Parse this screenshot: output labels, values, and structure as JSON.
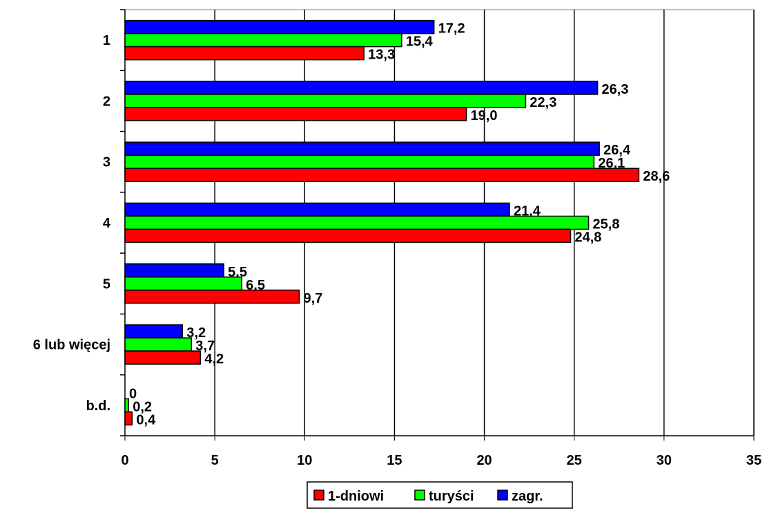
{
  "chart_data": {
    "type": "bar",
    "orientation": "horizontal",
    "categories": [
      "1",
      "2",
      "3",
      "4",
      "5",
      "6 lub więcej",
      "b.d."
    ],
    "series": [
      {
        "name": "1-dniowi",
        "color": "#ff0000",
        "values": [
          13.3,
          19.0,
          28.6,
          24.8,
          9.7,
          4.2,
          0.4
        ],
        "labels": [
          "13,3",
          "19,0",
          "28,6",
          "24,8",
          "9,7",
          "4,2",
          "0,4"
        ]
      },
      {
        "name": "turyści",
        "color": "#00ff00",
        "values": [
          15.4,
          22.3,
          26.1,
          25.8,
          6.5,
          3.7,
          0.2
        ],
        "labels": [
          "15,4",
          "22,3",
          "26,1",
          "25,8",
          "6,5",
          "3,7",
          "0,2"
        ]
      },
      {
        "name": "zagr.",
        "color": "#0000ff",
        "values": [
          17.2,
          26.3,
          26.4,
          21.4,
          5.5,
          3.2,
          0
        ],
        "labels": [
          "17,2",
          "26,3",
          "26,4",
          "21,4",
          "5,5",
          "3,2",
          "0"
        ]
      }
    ],
    "xlim": [
      0,
      35
    ],
    "xticks": [
      0,
      5,
      10,
      15,
      20,
      25,
      30,
      35
    ],
    "grid": true,
    "legend_position": "bottom"
  }
}
